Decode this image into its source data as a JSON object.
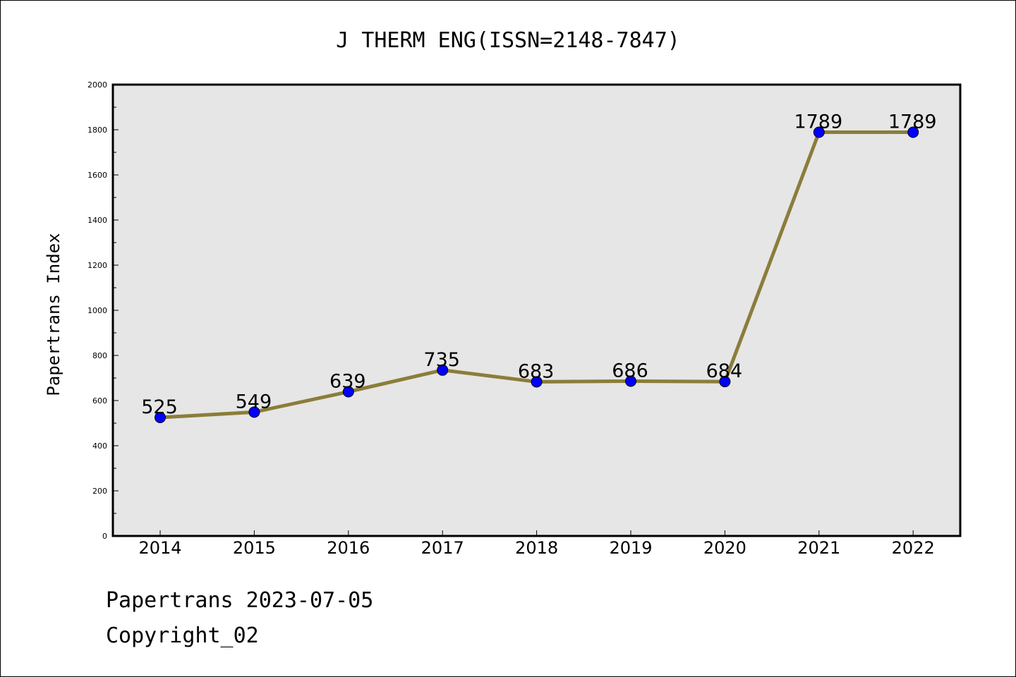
{
  "chart_data": {
    "type": "line",
    "title": "J THERM ENG(ISSN=2148-7847)",
    "ylabel": "Papertrans Index",
    "xlabel": "",
    "x": [
      "2014",
      "2015",
      "2016",
      "2017",
      "2018",
      "2019",
      "2020",
      "2021",
      "2022"
    ],
    "series": [
      {
        "values": [
          525,
          549,
          639,
          735,
          683,
          686,
          684,
          1789,
          1789
        ]
      }
    ],
    "data_labels": [
      "525",
      "549",
      "639",
      "735",
      "683",
      "686",
      "684",
      "1789",
      "1789"
    ],
    "ylim": [
      0,
      2000
    ],
    "yticks": [
      0,
      200,
      400,
      600,
      800,
      1000,
      1200,
      1400,
      1600,
      1800,
      2000
    ],
    "grid": false,
    "colors": {
      "line": "#8b7d3a",
      "marker": "#0000ff",
      "plot_background": "#e6e6e6"
    }
  },
  "footer": {
    "line1": "Papertrans 2023-07-05",
    "line2": "Copyright_02"
  }
}
